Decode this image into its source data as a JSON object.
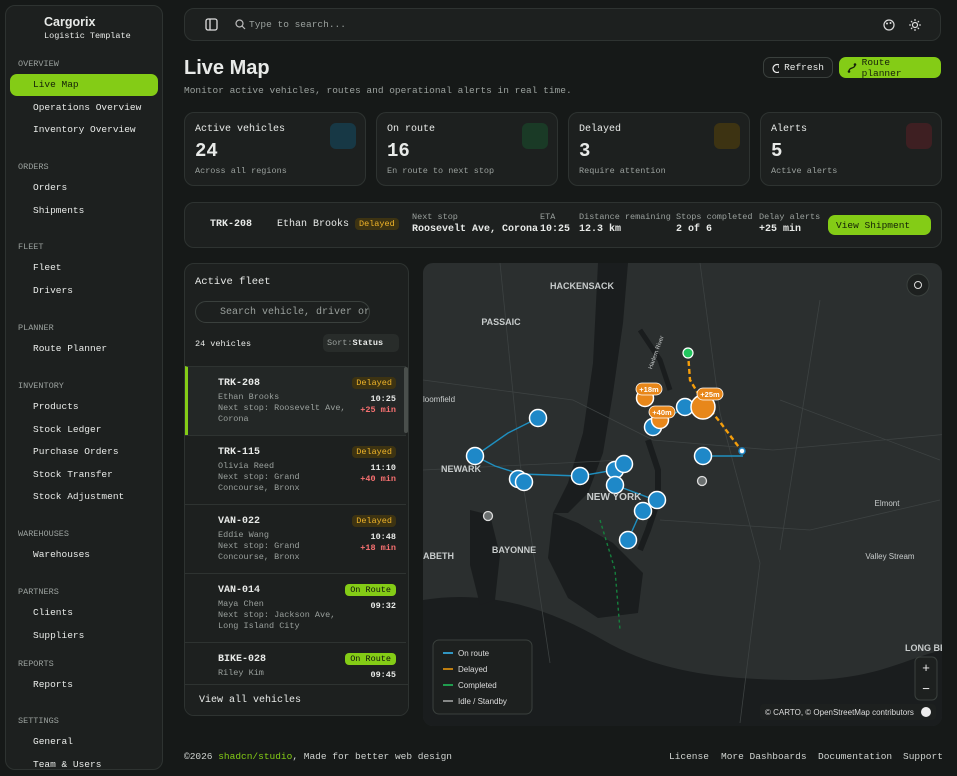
{
  "sidebar": {
    "brand": {
      "name": "Cargorix",
      "subtitle": "Logistic Template"
    },
    "sections": [
      {
        "title": "OVERVIEW",
        "items": [
          "Live Map",
          "Operations Overview",
          "Inventory Overview"
        ]
      },
      {
        "title": "ORDERS",
        "items": [
          "Orders",
          "Shipments"
        ]
      },
      {
        "title": "FLEET",
        "items": [
          "Fleet",
          "Drivers"
        ]
      },
      {
        "title": "PLANNER",
        "items": [
          "Route Planner"
        ]
      },
      {
        "title": "INVENTORY",
        "items": [
          "Products",
          "Stock Ledger",
          "Purchase Orders",
          "Stock Transfer",
          "Stock Adjustment"
        ]
      },
      {
        "title": "WAREHOUSES",
        "items": [
          "Warehouses"
        ]
      },
      {
        "title": "PARTNERS",
        "items": [
          "Clients",
          "Suppliers"
        ]
      },
      {
        "title": "REPORTS",
        "items": [
          "Reports"
        ]
      },
      {
        "title": "SETTINGS",
        "items": [
          "General",
          "Team & Users"
        ]
      }
    ]
  },
  "topbar": {
    "search_placeholder": "Type to search..."
  },
  "header": {
    "title": "Live Map",
    "subtitle": "Monitor active vehicles, routes and operational alerts in real time.",
    "refresh": "Refresh",
    "route_planner": "Route planner"
  },
  "stats": [
    {
      "label": "Active vehicles",
      "value": 24,
      "note": "Across all regions"
    },
    {
      "label": "On route",
      "value": 16,
      "note": "En route to next stop"
    },
    {
      "label": "Delayed",
      "value": 3,
      "note": "Require attention"
    },
    {
      "label": "Alerts",
      "value": 5,
      "note": "Active alerts"
    }
  ],
  "shipment": {
    "vehicle": "TRK-208",
    "driver": "Ethan Brooks",
    "status": "Delayed",
    "fields": [
      {
        "label": "Next stop",
        "value": "Roosevelt Ave, Corona"
      },
      {
        "label": "ETA",
        "value": "10:25"
      },
      {
        "label": "Distance remaining",
        "value": "12.3 km"
      },
      {
        "label": "Stops completed",
        "value": "2 of 6"
      },
      {
        "label": "Delay alerts",
        "value": "+25 min"
      }
    ],
    "button": "View Shipment"
  },
  "fleet": {
    "title": "Active fleet",
    "search_placeholder": "Search vehicle, driver or",
    "count": "24 vehicles",
    "sort_label": "Sort:",
    "sort_value": "Status",
    "vehicles": [
      {
        "id": "TRK-208",
        "status": "Delayed",
        "driver": "Ethan Brooks",
        "next_stop": "Next stop: Roosevelt Ave, Corona",
        "time": "10:25",
        "delay": "+25 min"
      },
      {
        "id": "TRK-115",
        "status": "Delayed",
        "driver": "Olivia Reed",
        "next_stop": "Next stop: Grand Concourse, Bronx",
        "time": "11:10",
        "delay": "+40 min"
      },
      {
        "id": "VAN-022",
        "status": "Delayed",
        "driver": "Eddie Wang",
        "next_stop": "Next stop: Grand Concourse, Bronx",
        "time": "10:48",
        "delay": "+18 min"
      },
      {
        "id": "VAN-014",
        "status": "On Route",
        "driver": "Maya Chen",
        "next_stop": "Next stop: Jackson Ave, Long Island City",
        "time": "09:32"
      },
      {
        "id": "BIKE-028",
        "status": "On Route",
        "driver": "Riley Kim",
        "time": "09:45"
      }
    ],
    "view_all": "View all vehicles"
  },
  "map": {
    "places": [
      "HACKENSACK",
      "PASSAIC",
      "NEWARK",
      "NEW YORK",
      "BAYONNE",
      "Elmont",
      "Valley Stream",
      "LONG BE",
      "loomfield",
      "ABETH",
      "Harlem River"
    ],
    "delay_badges": [
      "+18m",
      "+40m",
      "+25m"
    ],
    "legend": [
      "On route",
      "Delayed",
      "Completed",
      "Idle / Standby"
    ],
    "zoom_in": "+",
    "zoom_out": "−",
    "attribution": "© CARTO, © OpenStreetMap contributors"
  },
  "footer": {
    "copyright": "©2026",
    "brand": "shadcn/studio",
    "tagline": ", Made for better web design",
    "links": [
      "License",
      "More Dashboards",
      "Documentation",
      "Support"
    ]
  }
}
